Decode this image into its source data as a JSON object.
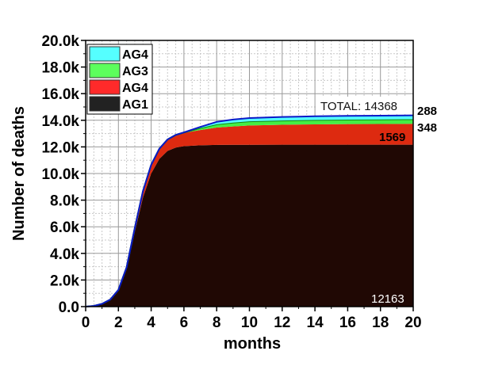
{
  "chart_data": {
    "type": "area",
    "stacked": true,
    "title": "",
    "xlabel": "months",
    "ylabel": "Number of deaths",
    "xlim": [
      0,
      20
    ],
    "ylim": [
      0,
      20000
    ],
    "grid": true,
    "legend_position": "top-left",
    "x_ticks": [
      "0",
      "2",
      "4",
      "6",
      "8",
      "10",
      "12",
      "14",
      "16",
      "18",
      "20"
    ],
    "y_ticks": [
      "0.0",
      "2.0k",
      "4.0k",
      "6.0k",
      "8.0k",
      "10.0k",
      "12.0k",
      "14.0k",
      "16.0k",
      "18.0k",
      "20.0k"
    ],
    "x": [
      0,
      0.5,
      1,
      1.5,
      2,
      2.5,
      3,
      3.5,
      4,
      4.5,
      5,
      5.5,
      6,
      7,
      8,
      9,
      10,
      12,
      14,
      16,
      18,
      20
    ],
    "series": [
      {
        "name": "AG1",
        "color": "#200804",
        "values": [
          0,
          50,
          200,
          500,
          1200,
          2800,
          5600,
          8200,
          10000,
          11100,
          11700,
          11950,
          12050,
          12120,
          12150,
          12155,
          12160,
          12163,
          12163,
          12163,
          12163,
          12163
        ],
        "final_label": "12163"
      },
      {
        "name": "AG4",
        "color": "#dd2a10",
        "values": [
          0,
          2,
          10,
          30,
          60,
          150,
          300,
          480,
          650,
          760,
          850,
          930,
          1000,
          1150,
          1300,
          1380,
          1450,
          1500,
          1530,
          1550,
          1560,
          1569
        ],
        "final_label": "1569"
      },
      {
        "name": "AG3",
        "color": "#44ee44",
        "line": "#118811",
        "values": [
          0,
          0,
          0,
          0,
          0,
          0,
          0,
          0,
          0,
          0,
          5,
          15,
          30,
          150,
          250,
          290,
          310,
          320,
          330,
          335,
          340,
          348
        ],
        "final_label": "348"
      },
      {
        "name": "AG4",
        "color": "#55ffff",
        "line": "#0a18c8",
        "values": [
          0,
          0,
          0,
          0,
          0,
          0,
          0,
          0,
          0,
          0,
          2,
          5,
          10,
          80,
          180,
          230,
          250,
          265,
          275,
          280,
          285,
          288
        ],
        "final_label": "288"
      }
    ],
    "legend": [
      {
        "label": "AG4",
        "color": "#55ffff"
      },
      {
        "label": "AG3",
        "color": "#5cff5c"
      },
      {
        "label": "AG4",
        "color": "#ff2a2a"
      },
      {
        "label": "AG1",
        "color": "#222222"
      }
    ],
    "total_annotation": "TOTAL: 14368"
  }
}
